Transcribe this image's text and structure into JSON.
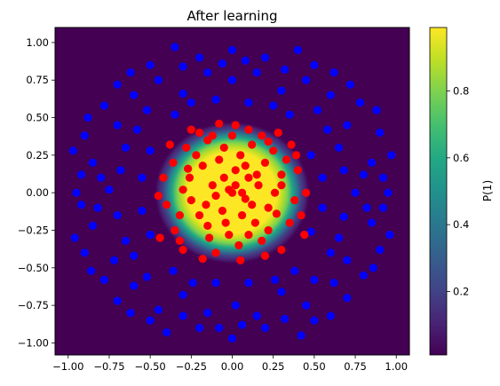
{
  "chart_data": {
    "type": "scatter",
    "title": "After learning",
    "xlabel": "",
    "ylabel": "",
    "xlim": [
      -1.08,
      1.08
    ],
    "ylim": [
      -1.08,
      1.1
    ],
    "xticks": [
      -1.0,
      -0.75,
      -0.5,
      -0.25,
      0.0,
      0.25,
      0.5,
      0.75,
      1.0
    ],
    "xtick_labels": [
      "−1.00",
      "−0.75",
      "−0.50",
      "−0.25",
      "0.00",
      "0.25",
      "0.50",
      "0.75",
      "1.00"
    ],
    "yticks": [
      1.0,
      0.75,
      0.5,
      0.25,
      0.0,
      -0.25,
      -0.5,
      -0.75,
      -1.0
    ],
    "ytick_labels": [
      "1.00",
      "0.75",
      "0.50",
      "0.25",
      "0.00",
      "−0.25",
      "−0.50",
      "−0.75",
      "−1.00"
    ],
    "grid": false,
    "legend": "none",
    "background_field": {
      "description_of_values": "probability of class 1",
      "peak_value": 0.99,
      "core_radius": 0.27,
      "falloff_radius": 0.47,
      "colormap": "viridis"
    },
    "colorbar": {
      "label": "P(1)",
      "range": [
        0.01,
        0.99
      ],
      "ticks": [
        0.2,
        0.4,
        0.6,
        0.8
      ],
      "tick_labels": [
        "0.2",
        "0.4",
        "0.6",
        "0.8"
      ]
    },
    "series": [
      {
        "color": "#ff0000",
        "points": [
          [
            0.02,
            0.05
          ],
          [
            -0.05,
            0.1
          ],
          [
            0.08,
            -0.04
          ],
          [
            -0.1,
            -0.02
          ],
          [
            0.15,
            0.12
          ],
          [
            -0.18,
            0.18
          ],
          [
            0.22,
            -0.1
          ],
          [
            -0.2,
            -0.15
          ],
          [
            0.05,
            0.25
          ],
          [
            -0.02,
            -0.28
          ],
          [
            0.3,
            0.05
          ],
          [
            -0.3,
            0.02
          ],
          [
            0.12,
            0.32
          ],
          [
            -0.15,
            0.35
          ],
          [
            0.35,
            -0.2
          ],
          [
            -0.35,
            -0.25
          ],
          [
            0.25,
            0.28
          ],
          [
            -0.28,
            0.3
          ],
          [
            0.18,
            -0.32
          ],
          [
            -0.1,
            -0.4
          ],
          [
            0.4,
            0.15
          ],
          [
            -0.42,
            0.1
          ],
          [
            0.38,
            -0.05
          ],
          [
            -0.4,
            -0.08
          ],
          [
            0.02,
            0.45
          ],
          [
            0.05,
            -0.45
          ],
          [
            0.28,
            0.4
          ],
          [
            -0.25,
            0.42
          ],
          [
            0.3,
            -0.38
          ],
          [
            -0.3,
            -0.38
          ],
          [
            0.1,
            0.1
          ],
          [
            -0.12,
            0.05
          ],
          [
            0.06,
            -0.15
          ],
          [
            -0.06,
            -0.12
          ],
          [
            0.2,
            0.2
          ],
          [
            -0.22,
            0.25
          ],
          [
            0.14,
            -0.2
          ],
          [
            -0.15,
            -0.22
          ],
          [
            0.33,
            0.22
          ],
          [
            -0.36,
            0.2
          ],
          [
            0.45,
            0.0
          ],
          [
            -0.45,
            -0.02
          ],
          [
            0.0,
            0.0
          ],
          [
            0.1,
            0.42
          ],
          [
            -0.08,
            0.46
          ],
          [
            0.2,
            -0.42
          ],
          [
            -0.18,
            -0.44
          ],
          [
            0.42,
            -0.15
          ],
          [
            -0.38,
            0.32
          ],
          [
            0.36,
            0.32
          ],
          [
            -0.05,
            0.3
          ],
          [
            0.04,
            -0.35
          ],
          [
            0.26,
            0.0
          ],
          [
            -0.25,
            -0.05
          ],
          [
            0.16,
            0.05
          ],
          [
            -0.16,
            -0.08
          ],
          [
            0.08,
            0.18
          ],
          [
            -0.04,
            -0.2
          ],
          [
            0.12,
            -0.08
          ],
          [
            -0.08,
            0.22
          ],
          [
            0.3,
            0.12
          ],
          [
            -0.32,
            -0.15
          ],
          [
            0.22,
            -0.25
          ],
          [
            -0.26,
            0.1
          ],
          [
            0.0,
            0.38
          ],
          [
            0.02,
            0.15
          ],
          [
            -0.12,
            0.38
          ],
          [
            0.18,
            0.38
          ],
          [
            0.39,
            0.25
          ],
          [
            -0.44,
            -0.3
          ],
          [
            0.44,
            -0.28
          ],
          [
            -0.2,
            0.4
          ],
          [
            0.22,
            0.34
          ],
          [
            -0.32,
            -0.32
          ],
          [
            0.06,
            0.0
          ],
          [
            -0.02,
            0.02
          ],
          [
            0.1,
            -0.28
          ],
          [
            -0.14,
            -0.3
          ],
          [
            0.27,
            -0.14
          ],
          [
            -0.27,
            0.16
          ]
        ]
      },
      {
        "color": "#0000ff",
        "points": [
          [
            0.6,
            0.65
          ],
          [
            -0.6,
            0.65
          ],
          [
            0.62,
            -0.6
          ],
          [
            -0.6,
            -0.62
          ],
          [
            0.85,
            0.2
          ],
          [
            -0.85,
            0.2
          ],
          [
            0.85,
            -0.2
          ],
          [
            -0.85,
            -0.22
          ],
          [
            0.2,
            0.9
          ],
          [
            -0.2,
            0.9
          ],
          [
            0.2,
            -0.9
          ],
          [
            -0.2,
            -0.9
          ],
          [
            0.0,
            0.95
          ],
          [
            0.0,
            -0.97
          ],
          [
            0.95,
            0.0
          ],
          [
            -0.95,
            0.0
          ],
          [
            0.7,
            0.45
          ],
          [
            -0.7,
            0.45
          ],
          [
            0.7,
            -0.45
          ],
          [
            -0.72,
            -0.45
          ],
          [
            0.45,
            0.75
          ],
          [
            -0.45,
            0.75
          ],
          [
            0.45,
            -0.75
          ],
          [
            -0.45,
            -0.78
          ],
          [
            0.55,
            0.1
          ],
          [
            -0.55,
            0.1
          ],
          [
            0.55,
            -0.1
          ],
          [
            -0.55,
            -0.12
          ],
          [
            0.1,
            0.6
          ],
          [
            -0.1,
            0.62
          ],
          [
            0.1,
            -0.6
          ],
          [
            -0.1,
            -0.6
          ],
          [
            0.65,
            0.3
          ],
          [
            -0.65,
            0.3
          ],
          [
            0.65,
            -0.3
          ],
          [
            -0.65,
            -0.32
          ],
          [
            0.3,
            0.68
          ],
          [
            -0.3,
            0.66
          ],
          [
            0.3,
            -0.66
          ],
          [
            -0.3,
            -0.68
          ],
          [
            0.78,
            0.6
          ],
          [
            -0.78,
            0.58
          ],
          [
            0.8,
            -0.55
          ],
          [
            -0.78,
            -0.58
          ],
          [
            0.5,
            0.85
          ],
          [
            -0.5,
            0.85
          ],
          [
            0.5,
            -0.85
          ],
          [
            -0.5,
            -0.85
          ],
          [
            0.9,
            0.4
          ],
          [
            -0.9,
            0.38
          ],
          [
            0.9,
            -0.38
          ],
          [
            -0.9,
            -0.4
          ],
          [
            0.35,
            0.52
          ],
          [
            -0.35,
            0.52
          ],
          [
            0.38,
            -0.52
          ],
          [
            -0.36,
            -0.52
          ],
          [
            0.58,
            0.42
          ],
          [
            -0.58,
            0.42
          ],
          [
            0.6,
            -0.4
          ],
          [
            -0.6,
            -0.42
          ],
          [
            0.75,
            0.0
          ],
          [
            -0.75,
            0.02
          ],
          [
            0.0,
            0.75
          ],
          [
            0.02,
            -0.75
          ],
          [
            0.15,
            0.8
          ],
          [
            -0.15,
            0.8
          ],
          [
            0.15,
            -0.82
          ],
          [
            -0.15,
            -0.8
          ],
          [
            0.8,
            0.12
          ],
          [
            -0.8,
            0.1
          ],
          [
            0.82,
            -0.1
          ],
          [
            -0.82,
            -0.1
          ],
          [
            0.4,
            0.95
          ],
          [
            -0.35,
            0.97
          ],
          [
            0.42,
            -0.95
          ],
          [
            -0.4,
            -0.93
          ],
          [
            0.97,
            0.25
          ],
          [
            -0.97,
            0.28
          ],
          [
            0.96,
            -0.28
          ],
          [
            -0.96,
            -0.3
          ],
          [
            0.52,
            0.55
          ],
          [
            -0.52,
            0.55
          ],
          [
            0.5,
            -0.58
          ],
          [
            -0.52,
            -0.56
          ],
          [
            0.68,
            0.15
          ],
          [
            -0.68,
            0.15
          ],
          [
            0.68,
            -0.16
          ],
          [
            -0.7,
            -0.15
          ],
          [
            0.25,
            0.58
          ],
          [
            -0.25,
            0.6
          ],
          [
            0.26,
            -0.58
          ],
          [
            -0.24,
            -0.6
          ],
          [
            0.88,
            0.55
          ],
          [
            -0.88,
            0.5
          ],
          [
            0.86,
            -0.5
          ],
          [
            -0.86,
            -0.52
          ],
          [
            0.62,
            0.8
          ],
          [
            -0.62,
            0.8
          ],
          [
            0.6,
            -0.82
          ],
          [
            -0.62,
            -0.8
          ],
          [
            0.08,
            0.88
          ],
          [
            -0.06,
            0.86
          ],
          [
            0.06,
            -0.88
          ],
          [
            -0.08,
            -0.9
          ],
          [
            0.72,
            0.72
          ],
          [
            -0.7,
            0.72
          ],
          [
            0.7,
            -0.7
          ],
          [
            -0.7,
            -0.72
          ],
          [
            0.48,
            0.25
          ],
          [
            -0.5,
            0.28
          ],
          [
            0.48,
            -0.26
          ],
          [
            -0.5,
            -0.28
          ],
          [
            0.92,
            0.1
          ],
          [
            -0.92,
            0.12
          ],
          [
            0.92,
            -0.1
          ],
          [
            -0.92,
            -0.08
          ],
          [
            0.32,
            0.82
          ],
          [
            -0.3,
            0.84
          ],
          [
            0.32,
            -0.84
          ],
          [
            -0.3,
            -0.82
          ]
        ]
      }
    ]
  }
}
